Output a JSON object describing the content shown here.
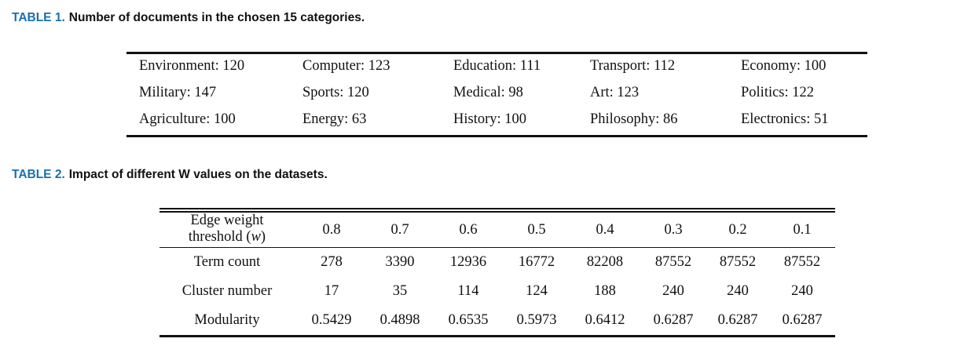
{
  "table1": {
    "label": "TABLE 1.",
    "caption": "Number of documents in the chosen 15 categories.",
    "rows": [
      [
        "Environment: 120",
        "Computer: 123",
        "Education: 111",
        "Transport: 112",
        "Economy: 100"
      ],
      [
        "Military: 147",
        "Sports: 120",
        "Medical: 98",
        "Art: 123",
        "Politics: 122"
      ],
      [
        "Agriculture: 100",
        "Energy: 63",
        "History: 100",
        "Philosophy: 86",
        "Electronics: 51"
      ]
    ]
  },
  "table2": {
    "label": "TABLE 2.",
    "caption": "Impact of different W values on the datasets.",
    "header": {
      "line1": "Edge weight",
      "line2_prefix": "threshold (",
      "line2_var": "w",
      "line2_suffix": ")",
      "values": [
        "0.8",
        "0.7",
        "0.6",
        "0.5",
        "0.4",
        "0.3",
        "0.2",
        "0.1"
      ]
    },
    "rows": [
      {
        "label": "Term count",
        "values": [
          "278",
          "3390",
          "12936",
          "16772",
          "82208",
          "87552",
          "87552",
          "87552"
        ]
      },
      {
        "label": "Cluster number",
        "values": [
          "17",
          "35",
          "114",
          "124",
          "188",
          "240",
          "240",
          "240"
        ]
      },
      {
        "label": "Modularity",
        "values": [
          "0.5429",
          "0.4898",
          "0.6535",
          "0.5973",
          "0.6412",
          "0.6287",
          "0.6287",
          "0.6287"
        ]
      }
    ]
  }
}
